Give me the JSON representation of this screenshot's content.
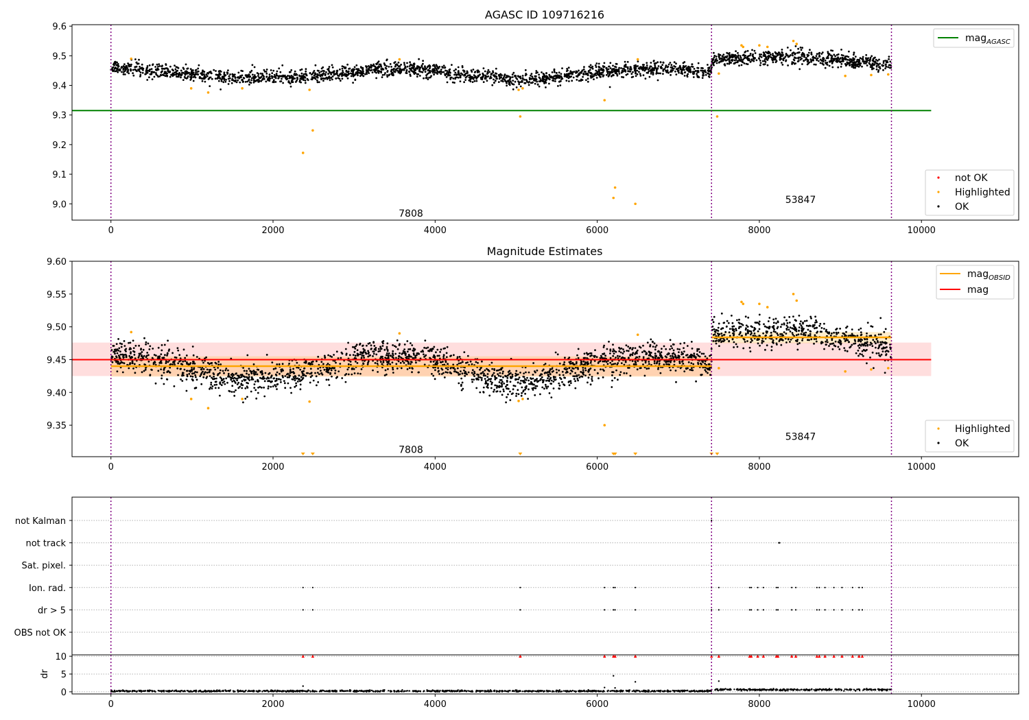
{
  "chart_data": [
    {
      "id": "top",
      "type": "scatter",
      "title": "AGASC ID 109716216",
      "xlim": [
        -480,
        11200
      ],
      "ylim": [
        8.945,
        9.605
      ],
      "xticks": [
        0,
        2000,
        4000,
        6000,
        8000,
        10000
      ],
      "yticks": [
        9.0,
        9.1,
        9.2,
        9.3,
        9.4,
        9.5,
        9.6
      ],
      "ytick_labels": [
        "9.0",
        "9.1",
        "9.2",
        "9.3",
        "9.4",
        "9.5",
        "9.6"
      ],
      "vlines": [
        0,
        7410,
        9630
      ],
      "hline": {
        "y": 9.315,
        "x_range": [
          -480,
          10120
        ],
        "color": "#008000"
      },
      "ok_trend": [
        [
          0,
          9.46
        ],
        [
          700,
          9.445
        ],
        [
          1500,
          9.425
        ],
        [
          2400,
          9.43
        ],
        [
          3000,
          9.445
        ],
        [
          3600,
          9.46
        ],
        [
          4100,
          9.445
        ],
        [
          4600,
          9.43
        ],
        [
          5000,
          9.42
        ],
        [
          5400,
          9.425
        ],
        [
          6000,
          9.445
        ],
        [
          6600,
          9.455
        ],
        [
          7100,
          9.455
        ],
        [
          7400,
          9.44
        ],
        [
          7420,
          9.49
        ],
        [
          8500,
          9.495
        ],
        [
          9630,
          9.47
        ]
      ],
      "ok_noise": 0.012,
      "highlighted_points": [
        [
          250,
          9.49
        ],
        [
          990,
          9.39
        ],
        [
          1200,
          9.376
        ],
        [
          1620,
          9.39
        ],
        [
          2370,
          9.172
        ],
        [
          2450,
          9.385
        ],
        [
          2490,
          9.248
        ],
        [
          3560,
          9.488
        ],
        [
          5030,
          9.385
        ],
        [
          5050,
          9.295
        ],
        [
          5080,
          9.39
        ],
        [
          6090,
          9.35
        ],
        [
          6200,
          9.02
        ],
        [
          6220,
          9.055
        ],
        [
          6470,
          9.0
        ],
        [
          6500,
          9.488
        ],
        [
          7480,
          9.295
        ],
        [
          7500,
          9.44
        ],
        [
          7780,
          9.535
        ],
        [
          7800,
          9.53
        ],
        [
          8000,
          9.535
        ],
        [
          8100,
          9.53
        ],
        [
          8420,
          9.55
        ],
        [
          8460,
          9.54
        ],
        [
          9060,
          9.432
        ],
        [
          9380,
          9.435
        ],
        [
          9590,
          9.437
        ]
      ],
      "annotations": [
        {
          "text": "7808",
          "x": 3550,
          "y": 8.968
        },
        {
          "text": "53847",
          "x": 8320,
          "y": 9.015
        }
      ],
      "legends": [
        {
          "position": "upper-right",
          "entries": [
            {
              "label": "mag",
              "sub": "AGASC",
              "color": "#008000",
              "kind": "line"
            }
          ]
        },
        {
          "position": "lower-right",
          "entries": [
            {
              "label": "not OK",
              "color": "#ff0000",
              "kind": "dot"
            },
            {
              "label": "Highlighted",
              "color": "#ffa500",
              "kind": "dot"
            },
            {
              "label": "OK",
              "color": "#000000",
              "kind": "dot"
            }
          ]
        }
      ]
    },
    {
      "id": "mid",
      "type": "scatter",
      "title": "Magnitude Estimates",
      "xlim": [
        -480,
        11200
      ],
      "ylim": [
        9.302,
        9.6
      ],
      "xticks": [
        0,
        2000,
        4000,
        6000,
        8000,
        10000
      ],
      "yticks": [
        9.35,
        9.4,
        9.45,
        9.5,
        9.55,
        9.6
      ],
      "ytick_labels": [
        "9.35",
        "9.40",
        "9.45",
        "9.50",
        "9.55",
        "9.60"
      ],
      "vlines": [
        0,
        7410,
        9630
      ],
      "mag": {
        "value": 9.45,
        "band": [
          9.425,
          9.476
        ],
        "x_range": [
          -480,
          10120
        ],
        "color": "#ff0000"
      },
      "mag_obsid": [
        {
          "x_range": [
            0,
            7410
          ],
          "value": 9.44,
          "band": [
            9.424,
            9.455
          ]
        },
        {
          "x_range": [
            7410,
            9630
          ],
          "value": 9.484,
          "band": [
            9.475,
            9.492
          ]
        }
      ],
      "ok_trend": [
        [
          0,
          9.46
        ],
        [
          700,
          9.445
        ],
        [
          1500,
          9.42
        ],
        [
          2400,
          9.43
        ],
        [
          3000,
          9.45
        ],
        [
          3600,
          9.46
        ],
        [
          4100,
          9.445
        ],
        [
          4600,
          9.425
        ],
        [
          5000,
          9.415
        ],
        [
          5400,
          9.42
        ],
        [
          6000,
          9.445
        ],
        [
          6600,
          9.455
        ],
        [
          7100,
          9.455
        ],
        [
          7400,
          9.44
        ],
        [
          7420,
          9.49
        ],
        [
          8500,
          9.495
        ],
        [
          9630,
          9.47
        ]
      ],
      "ok_noise": 0.012,
      "highlighted_points": [
        [
          250,
          9.492
        ],
        [
          990,
          9.39
        ],
        [
          1200,
          9.376
        ],
        [
          1620,
          9.39
        ],
        [
          2450,
          9.386
        ],
        [
          3560,
          9.49
        ],
        [
          5030,
          9.387
        ],
        [
          5080,
          9.39
        ],
        [
          6090,
          9.35
        ],
        [
          6500,
          9.488
        ],
        [
          7500,
          9.437
        ],
        [
          7780,
          9.538
        ],
        [
          7800,
          9.535
        ],
        [
          8000,
          9.535
        ],
        [
          8100,
          9.53
        ],
        [
          8420,
          9.55
        ],
        [
          8460,
          9.54
        ],
        [
          9060,
          9.432
        ],
        [
          9380,
          9.435
        ],
        [
          9590,
          9.437
        ]
      ],
      "clipped_x": [
        2370,
        2490,
        5050,
        6200,
        6220,
        6470,
        7410,
        7480
      ],
      "annotations": [
        {
          "text": "7808",
          "x": 3550,
          "y": 9.313
        },
        {
          "text": "53847",
          "x": 8320,
          "y": 9.333
        }
      ],
      "legends": [
        {
          "position": "upper-right",
          "entries": [
            {
              "label": "mag",
              "sub": "OBSID",
              "color": "#ffa500",
              "kind": "line"
            },
            {
              "label": "mag",
              "color": "#ff0000",
              "kind": "line"
            }
          ]
        },
        {
          "position": "lower-right",
          "entries": [
            {
              "label": "Highlighted",
              "color": "#ffa500",
              "kind": "dot"
            },
            {
              "label": "OK",
              "color": "#000000",
              "kind": "dot"
            }
          ]
        }
      ]
    },
    {
      "id": "flags",
      "type": "scatter",
      "xlim": [
        -480,
        11200
      ],
      "vlines": [
        0,
        7410,
        9630
      ],
      "categories": [
        "not Kalman",
        "not track",
        "Sat. pixel.",
        "Ion. rad.",
        "dr > 5",
        "OBS not OK"
      ],
      "flags": {
        "not Kalman": [
          7410
        ],
        "not track": [
          8240,
          8250
        ],
        "Sat. pixel.": [],
        "Ion. rad.": [
          2370,
          2490,
          5050,
          6090,
          6200,
          6220,
          6470,
          7410,
          7500,
          7880,
          7900,
          7980,
          8050,
          8210,
          8230,
          8400,
          8450,
          8710,
          8740,
          8810,
          8920,
          9020,
          9150,
          9230,
          9270
        ],
        "dr > 5": [
          2370,
          2490,
          5050,
          6090,
          6200,
          6220,
          6470,
          7410,
          7500,
          7880,
          7900,
          7980,
          8050,
          8210,
          8230,
          8400,
          8450,
          8710,
          8740,
          8810,
          8920,
          9020,
          9150,
          9230,
          9270
        ],
        "OBS not OK": []
      }
    },
    {
      "id": "dr",
      "type": "scatter",
      "ylabel": "dr",
      "xlim": [
        -480,
        11200
      ],
      "ylim": [
        -0.6,
        10.4
      ],
      "xticks": [
        0,
        2000,
        4000,
        6000,
        8000,
        10000
      ],
      "yticks": [
        0,
        5,
        10
      ],
      "vlines": [
        0,
        7410,
        9630
      ],
      "clip_markers_x": [
        2370,
        2490,
        5050,
        6090,
        6200,
        6220,
        6470,
        7410,
        7500,
        7880,
        7900,
        7980,
        8050,
        8210,
        8230,
        8400,
        8450,
        8710,
        8740,
        8810,
        8920,
        9020,
        9150,
        9230,
        9270
      ],
      "outliers": [
        [
          2370,
          1.6
        ],
        [
          6090,
          1.2
        ],
        [
          6200,
          4.5
        ],
        [
          6220,
          1.1
        ],
        [
          6470,
          2.8
        ],
        [
          7500,
          3.0
        ]
      ],
      "baseline": [
        {
          "x_range": [
            0,
            7410
          ],
          "value": 0.2
        },
        {
          "x_range": [
            7410,
            9630
          ],
          "value": 0.6
        }
      ]
    }
  ]
}
